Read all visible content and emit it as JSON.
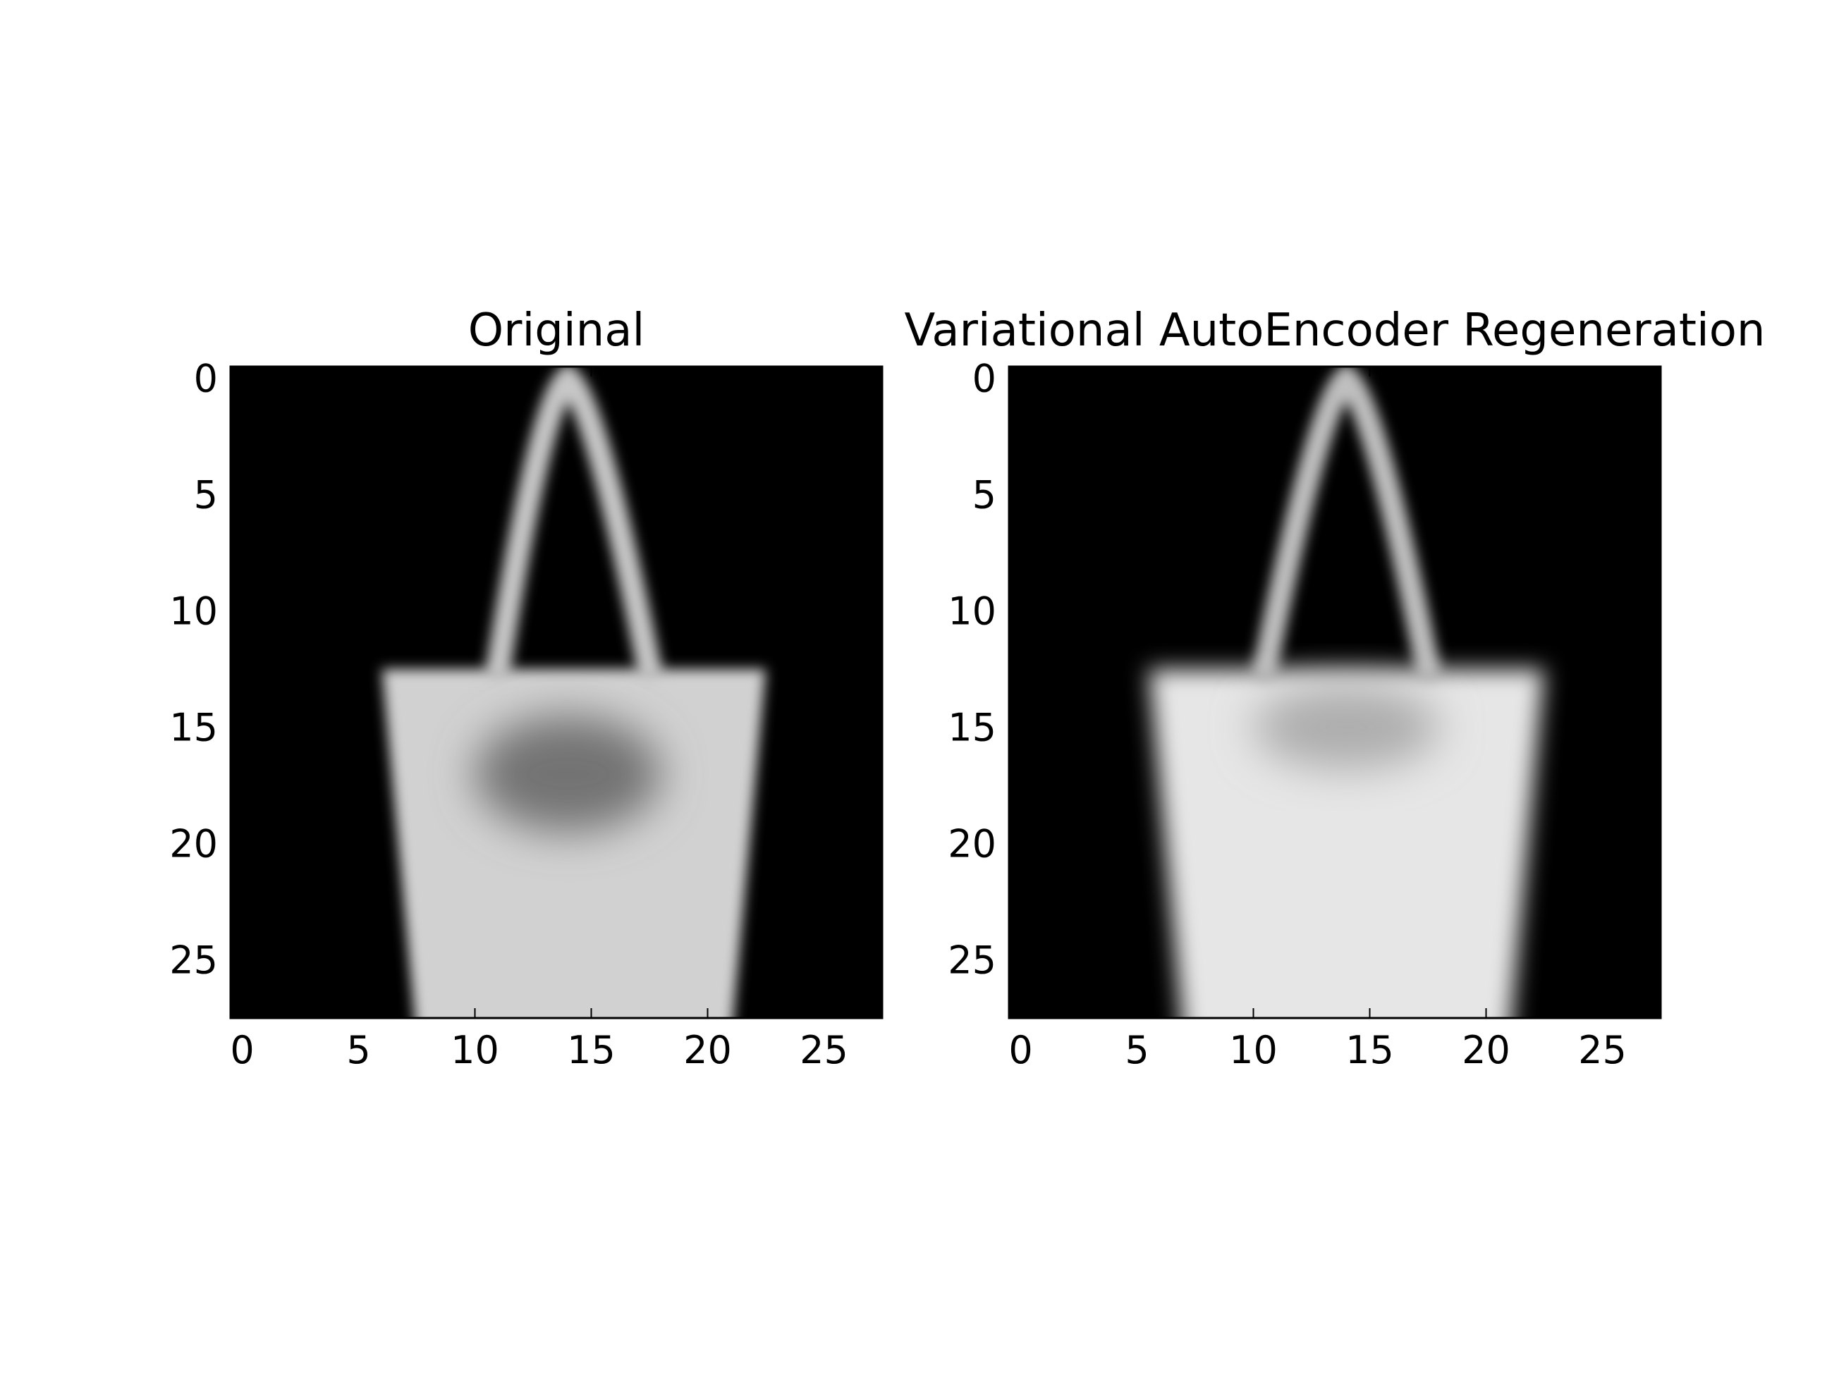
{
  "chart_data": [
    {
      "type": "heatmap",
      "title": "Original",
      "colormap": "gray",
      "background_color": "#000000",
      "xlim": [
        -0.5,
        27.5
      ],
      "ylim": [
        27.5,
        -0.5
      ],
      "xticks": [
        0,
        5,
        10,
        15,
        20,
        25
      ],
      "yticks": [
        0,
        5,
        10,
        15,
        20,
        25
      ],
      "grid": false,
      "image": {
        "handle": {
          "apex": [
            14,
            0
          ],
          "left_foot": [
            11,
            12.5
          ],
          "right_foot": [
            17.5,
            12.5
          ],
          "intensity": 0.78
        },
        "body": {
          "top": 12.5,
          "bottom": 27.5,
          "top_left": 6,
          "top_right": 22.5,
          "bottom_left": 7.5,
          "bottom_right": 21,
          "intensity": 0.82
        },
        "shade": {
          "center": [
            14,
            17
          ],
          "radius": [
            4,
            2.5
          ],
          "intensity": 0.45
        }
      }
    },
    {
      "type": "heatmap",
      "title": "Variational AutoEncoder Regeneration",
      "colormap": "gray",
      "background_color": "#000000",
      "xlim": [
        -0.5,
        27.5
      ],
      "ylim": [
        27.5,
        -0.5
      ],
      "xticks": [
        0,
        5,
        10,
        15,
        20,
        25
      ],
      "yticks": [
        0,
        5,
        10,
        15,
        20,
        25
      ],
      "grid": false,
      "image": {
        "handle": {
          "apex": [
            14,
            0
          ],
          "left_foot": [
            10.5,
            12.5
          ],
          "right_foot": [
            17.5,
            12.5
          ],
          "intensity": 0.75
        },
        "body": {
          "top": 12.5,
          "bottom": 27.5,
          "top_left": 5.5,
          "top_right": 22.5,
          "bottom_left": 7,
          "bottom_right": 21,
          "intensity": 0.9
        },
        "shade": {
          "center": [
            14,
            15
          ],
          "radius": [
            4,
            1.8
          ],
          "intensity": 0.68
        }
      }
    }
  ]
}
